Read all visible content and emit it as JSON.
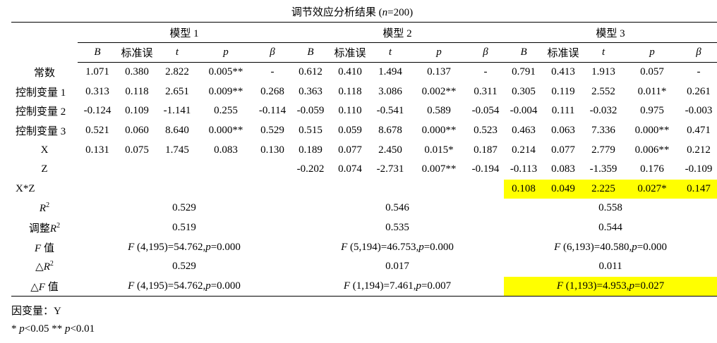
{
  "title": "调节效应分析结果 (n=200)",
  "title_parts": {
    "prefix": "调节效应分析结果 (",
    "n_label": "n",
    "suffix": "=200)"
  },
  "models": [
    "模型 1",
    "模型 2",
    "模型 3"
  ],
  "col_headers": [
    "B",
    "标准误",
    "t",
    "p",
    "β"
  ],
  "rows": [
    {
      "label": "常数",
      "cells": [
        "1.071",
        "0.380",
        "2.822",
        "0.005**",
        "-",
        "0.612",
        "0.410",
        "1.494",
        "0.137",
        "-",
        "0.791",
        "0.413",
        "1.913",
        "0.057",
        "-"
      ]
    },
    {
      "label": "控制变量 1",
      "cells": [
        "0.313",
        "0.118",
        "2.651",
        "0.009**",
        "0.268",
        "0.363",
        "0.118",
        "3.086",
        "0.002**",
        "0.311",
        "0.305",
        "0.119",
        "2.552",
        "0.011*",
        "0.261"
      ]
    },
    {
      "label": "控制变量 2",
      "cells": [
        "-0.124",
        "0.109",
        "-1.141",
        "0.255",
        "-0.114",
        "-0.059",
        "0.110",
        "-0.541",
        "0.589",
        "-0.054",
        "-0.004",
        "0.111",
        "-0.032",
        "0.975",
        "-0.003"
      ]
    },
    {
      "label": "控制变量 3",
      "cells": [
        "0.521",
        "0.060",
        "8.640",
        "0.000**",
        "0.529",
        "0.515",
        "0.059",
        "8.678",
        "0.000**",
        "0.523",
        "0.463",
        "0.063",
        "7.336",
        "0.000**",
        "0.471"
      ]
    },
    {
      "label": "X",
      "cells": [
        "0.131",
        "0.075",
        "1.745",
        "0.083",
        "0.130",
        "0.189",
        "0.077",
        "2.450",
        "0.015*",
        "0.187",
        "0.214",
        "0.077",
        "2.779",
        "0.006**",
        "0.212"
      ]
    },
    {
      "label": "Z",
      "cells": [
        "",
        "",
        "",
        "",
        "",
        "-0.202",
        "0.074",
        "-2.731",
        "0.007**",
        "-0.194",
        "-0.113",
        "0.083",
        "-1.359",
        "0.176",
        "-0.109"
      ]
    },
    {
      "label": "X*Z",
      "cells": [
        "",
        "",
        "",
        "",
        "",
        "",
        "",
        "",
        "",
        "",
        "0.108",
        "0.049",
        "2.225",
        "0.027*",
        "0.147"
      ]
    }
  ],
  "summary": [
    {
      "label_italic": "R",
      "label_sup": "2",
      "label_prefix": "",
      "label_suffix": "",
      "values": [
        "0.529",
        "0.546",
        "0.558"
      ]
    },
    {
      "label_italic": "R",
      "label_sup": "2",
      "label_prefix": "调整",
      "label_suffix": "",
      "values": [
        "0.519",
        "0.535",
        "0.544"
      ]
    },
    {
      "label_italic": "F",
      "label_sup": "",
      "label_prefix": "",
      "label_suffix": " 值",
      "values": [
        "F (4,195)=54.762,p=0.000",
        "F (5,194)=46.753,p=0.000",
        "F (6,193)=40.580,p=0.000"
      ]
    },
    {
      "label_italic": "R",
      "label_sup": "2",
      "label_prefix": "△",
      "label_suffix": "",
      "values": [
        "0.529",
        "0.017",
        "0.011"
      ]
    },
    {
      "label_italic": "F",
      "label_sup": "",
      "label_prefix": "△",
      "label_suffix": " 值",
      "values": [
        "F (4,195)=54.762,p=0.000",
        "F (1,194)=7.461,p=0.007",
        "F (1,193)=4.953,p=0.027"
      ]
    }
  ],
  "notes": [
    "因变量：Y",
    "* p<0.05 ** p<0.01"
  ],
  "colors": {
    "highlight": "#ffff00",
    "text": "#000000"
  }
}
